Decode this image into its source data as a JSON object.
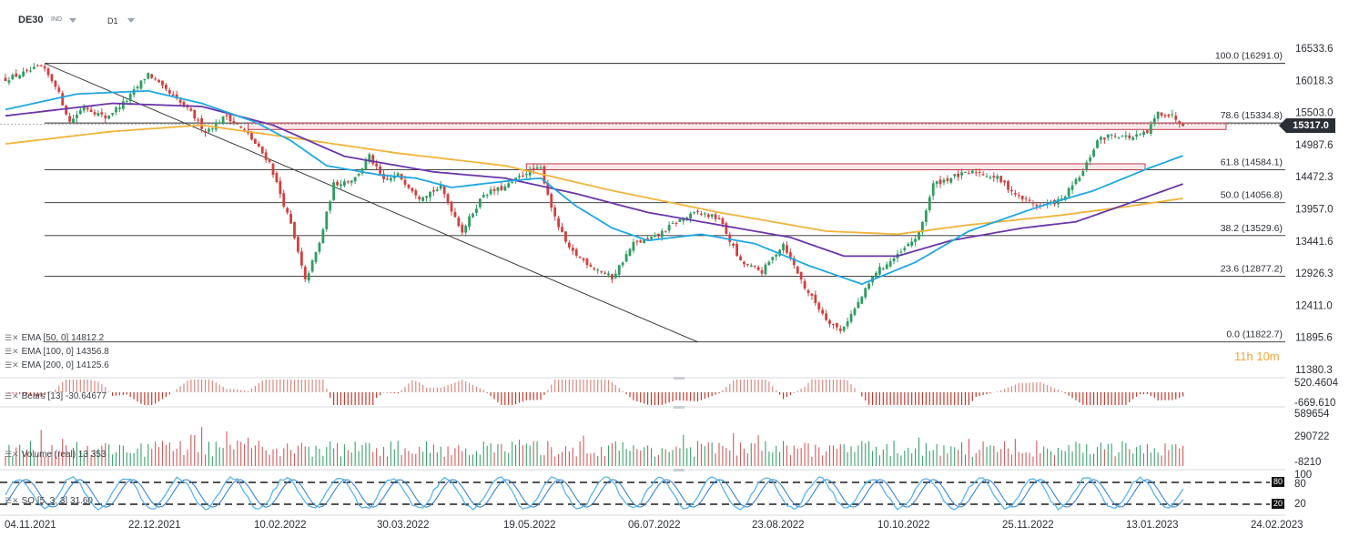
{
  "header": {
    "symbol": "DE30",
    "symbol_type": "IND",
    "timeframe": "D1"
  },
  "legends": {
    "ema50": "EMA [50, 0]  14812.2",
    "ema100": "EMA [100, 0]  14356.8",
    "ema200": "EMA [200, 0]  14125.6",
    "bears": "Bears [13] -30.64677",
    "volume": "Volume (real) 13 353",
    "so": "SO [5, 3, 3] 31.60"
  },
  "countdown": "11h 10m",
  "current_price": "15317.0",
  "colors": {
    "up": "#2e9c61",
    "down": "#d23f3f",
    "ema50": "#1ea7e1",
    "ema100": "#6a35a8",
    "ema200": "#f0b43a",
    "countdown": "#f2a33a"
  },
  "chart_data": {
    "type": "candlestick",
    "x_tick_labels": [
      "04.11.2021",
      "22.12.2021",
      "10.02.2022",
      "30.03.2022",
      "19.05.2022",
      "06.07.2022",
      "23.08.2022",
      "10.10.2022",
      "25.11.2022",
      "13.01.2023",
      "24.02.2023"
    ],
    "y_tick_labels": [
      "16533.6",
      "16018.3",
      "15503.0",
      "14987.6",
      "14472.3",
      "13957.0",
      "13441.6",
      "12926.3",
      "12411.0",
      "11895.6",
      "11380.3"
    ],
    "ylim": [
      11380.3,
      16533.6
    ],
    "fibonacci": [
      {
        "label": "100.0 (16291.0)",
        "value": 16291.0
      },
      {
        "label": "78.6 (15334.8)",
        "value": 15334.8
      },
      {
        "label": "61.8 (14584.1)",
        "value": 14584.1
      },
      {
        "label": "50.0 (14056.8)",
        "value": 14056.8
      },
      {
        "label": "38.2 (13529.6)",
        "value": 13529.6
      },
      {
        "label": "23.6 (12877.2)",
        "value": 12877.2
      },
      {
        "label": "0.0 (11822.7)",
        "value": 11822.7
      }
    ],
    "zones": [
      {
        "from": 15230,
        "to": 15335,
        "start_index": 68
      },
      {
        "from": 14584,
        "to": 14680,
        "start_index": 146
      }
    ],
    "close_path": [
      {
        "i": 0,
        "v": 16040
      },
      {
        "i": 6,
        "v": 16150
      },
      {
        "i": 10,
        "v": 16240
      },
      {
        "i": 14,
        "v": 15950
      },
      {
        "i": 18,
        "v": 15350
      },
      {
        "i": 22,
        "v": 15600
      },
      {
        "i": 28,
        "v": 15420
      },
      {
        "i": 34,
        "v": 15700
      },
      {
        "i": 40,
        "v": 16130
      },
      {
        "i": 44,
        "v": 15900
      },
      {
        "i": 52,
        "v": 15500
      },
      {
        "i": 56,
        "v": 15200
      },
      {
        "i": 62,
        "v": 15450
      },
      {
        "i": 68,
        "v": 15150
      },
      {
        "i": 74,
        "v": 14700
      },
      {
        "i": 80,
        "v": 13700
      },
      {
        "i": 84,
        "v": 12800
      },
      {
        "i": 88,
        "v": 13400
      },
      {
        "i": 92,
        "v": 14350
      },
      {
        "i": 98,
        "v": 14450
      },
      {
        "i": 102,
        "v": 14800
      },
      {
        "i": 106,
        "v": 14400
      },
      {
        "i": 110,
        "v": 14500
      },
      {
        "i": 116,
        "v": 14150
      },
      {
        "i": 122,
        "v": 14300
      },
      {
        "i": 128,
        "v": 13600
      },
      {
        "i": 134,
        "v": 14200
      },
      {
        "i": 140,
        "v": 14300
      },
      {
        "i": 146,
        "v": 14550
      },
      {
        "i": 150,
        "v": 14600
      },
      {
        "i": 154,
        "v": 13800
      },
      {
        "i": 158,
        "v": 13300
      },
      {
        "i": 164,
        "v": 13050
      },
      {
        "i": 170,
        "v": 12850
      },
      {
        "i": 176,
        "v": 13400
      },
      {
        "i": 182,
        "v": 13500
      },
      {
        "i": 188,
        "v": 13750
      },
      {
        "i": 194,
        "v": 13900
      },
      {
        "i": 200,
        "v": 13800
      },
      {
        "i": 206,
        "v": 13100
      },
      {
        "i": 212,
        "v": 12950
      },
      {
        "i": 218,
        "v": 13400
      },
      {
        "i": 224,
        "v": 12700
      },
      {
        "i": 230,
        "v": 12200
      },
      {
        "i": 234,
        "v": 12000
      },
      {
        "i": 238,
        "v": 12350
      },
      {
        "i": 244,
        "v": 12950
      },
      {
        "i": 250,
        "v": 13200
      },
      {
        "i": 256,
        "v": 13550
      },
      {
        "i": 260,
        "v": 14350
      },
      {
        "i": 266,
        "v": 14480
      },
      {
        "i": 272,
        "v": 14550
      },
      {
        "i": 278,
        "v": 14450
      },
      {
        "i": 284,
        "v": 14150
      },
      {
        "i": 290,
        "v": 14000
      },
      {
        "i": 296,
        "v": 14100
      },
      {
        "i": 302,
        "v": 14550
      },
      {
        "i": 306,
        "v": 15050
      },
      {
        "i": 310,
        "v": 15150
      },
      {
        "i": 316,
        "v": 15100
      },
      {
        "i": 320,
        "v": 15180
      },
      {
        "i": 323,
        "v": 15500
      },
      {
        "i": 327,
        "v": 15450
      },
      {
        "i": 330,
        "v": 15317
      }
    ],
    "ema50_path": [
      {
        "i": 0,
        "v": 15550
      },
      {
        "i": 20,
        "v": 15800
      },
      {
        "i": 40,
        "v": 15850
      },
      {
        "i": 55,
        "v": 15650
      },
      {
        "i": 70,
        "v": 15350
      },
      {
        "i": 80,
        "v": 15050
      },
      {
        "i": 90,
        "v": 14650
      },
      {
        "i": 105,
        "v": 14500
      },
      {
        "i": 115,
        "v": 14450
      },
      {
        "i": 125,
        "v": 14300
      },
      {
        "i": 140,
        "v": 14400
      },
      {
        "i": 150,
        "v": 14450
      },
      {
        "i": 160,
        "v": 14000
      },
      {
        "i": 170,
        "v": 13650
      },
      {
        "i": 180,
        "v": 13450
      },
      {
        "i": 195,
        "v": 13550
      },
      {
        "i": 210,
        "v": 13400
      },
      {
        "i": 225,
        "v": 13050
      },
      {
        "i": 240,
        "v": 12750
      },
      {
        "i": 255,
        "v": 13100
      },
      {
        "i": 270,
        "v": 13600
      },
      {
        "i": 290,
        "v": 14000
      },
      {
        "i": 305,
        "v": 14250
      },
      {
        "i": 320,
        "v": 14600
      },
      {
        "i": 330,
        "v": 14810
      }
    ],
    "ema100_path": [
      {
        "i": 0,
        "v": 15450
      },
      {
        "i": 30,
        "v": 15650
      },
      {
        "i": 55,
        "v": 15600
      },
      {
        "i": 75,
        "v": 15300
      },
      {
        "i": 95,
        "v": 14800
      },
      {
        "i": 120,
        "v": 14550
      },
      {
        "i": 140,
        "v": 14450
      },
      {
        "i": 160,
        "v": 14200
      },
      {
        "i": 180,
        "v": 13900
      },
      {
        "i": 200,
        "v": 13700
      },
      {
        "i": 220,
        "v": 13500
      },
      {
        "i": 235,
        "v": 13200
      },
      {
        "i": 250,
        "v": 13200
      },
      {
        "i": 265,
        "v": 13450
      },
      {
        "i": 285,
        "v": 13650
      },
      {
        "i": 300,
        "v": 13750
      },
      {
        "i": 315,
        "v": 14050
      },
      {
        "i": 330,
        "v": 14357
      }
    ],
    "ema200_path": [
      {
        "i": 0,
        "v": 15000
      },
      {
        "i": 30,
        "v": 15200
      },
      {
        "i": 55,
        "v": 15300
      },
      {
        "i": 80,
        "v": 15100
      },
      {
        "i": 110,
        "v": 14850
      },
      {
        "i": 140,
        "v": 14650
      },
      {
        "i": 170,
        "v": 14250
      },
      {
        "i": 200,
        "v": 13900
      },
      {
        "i": 230,
        "v": 13600
      },
      {
        "i": 250,
        "v": 13550
      },
      {
        "i": 270,
        "v": 13700
      },
      {
        "i": 295,
        "v": 13850
      },
      {
        "i": 315,
        "v": 14000
      },
      {
        "i": 330,
        "v": 14126
      }
    ],
    "bears_axis": [
      "520.4604",
      "-669.610"
    ],
    "volume_axis": [
      "589654",
      "290722",
      "-8210"
    ],
    "so_axis": [
      "100",
      "80",
      "20"
    ],
    "so_levels": [
      80,
      20
    ]
  }
}
